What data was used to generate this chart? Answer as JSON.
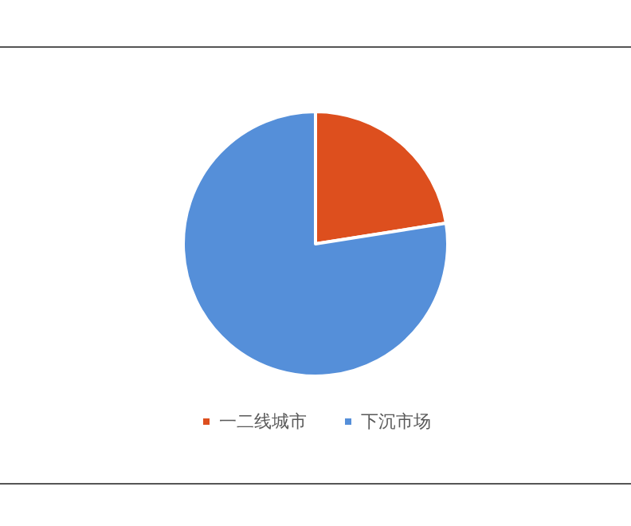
{
  "chart_data": {
    "type": "pie",
    "categories": [
      "一二线城市",
      "下沉市场"
    ],
    "values": [
      22.5,
      77.5
    ],
    "colors": [
      "#dd4f1e",
      "#558fd9"
    ],
    "legend": "bottom"
  }
}
